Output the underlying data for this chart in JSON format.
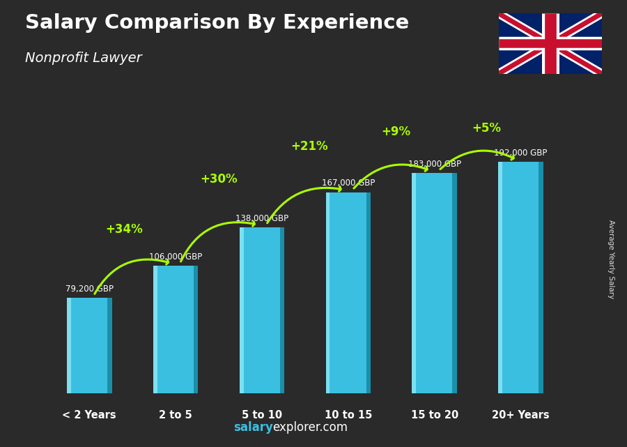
{
  "title": "Salary Comparison By Experience",
  "subtitle": "Nonprofit Lawyer",
  "categories": [
    "< 2 Years",
    "2 to 5",
    "5 to 10",
    "10 to 15",
    "15 to 20",
    "20+ Years"
  ],
  "values": [
    79200,
    106000,
    138000,
    167000,
    183000,
    192000
  ],
  "value_labels": [
    "79,200 GBP",
    "106,000 GBP",
    "138,000 GBP",
    "167,000 GBP",
    "183,000 GBP",
    "192,000 GBP"
  ],
  "pct_labels": [
    "+34%",
    "+30%",
    "+21%",
    "+9%",
    "+5%"
  ],
  "bar_color_face": "#3bbfe0",
  "bar_color_left": "#7ddff0",
  "bar_color_right": "#1a8faa",
  "pct_color": "#aaff00",
  "footer_salary": "salary",
  "footer_rest": "explorer.com",
  "side_label": "Average Yearly Salary",
  "background_color": "#2a2a2a",
  "ylim_max": 230000,
  "flag_blue": "#012169",
  "flag_red": "#C8102E"
}
